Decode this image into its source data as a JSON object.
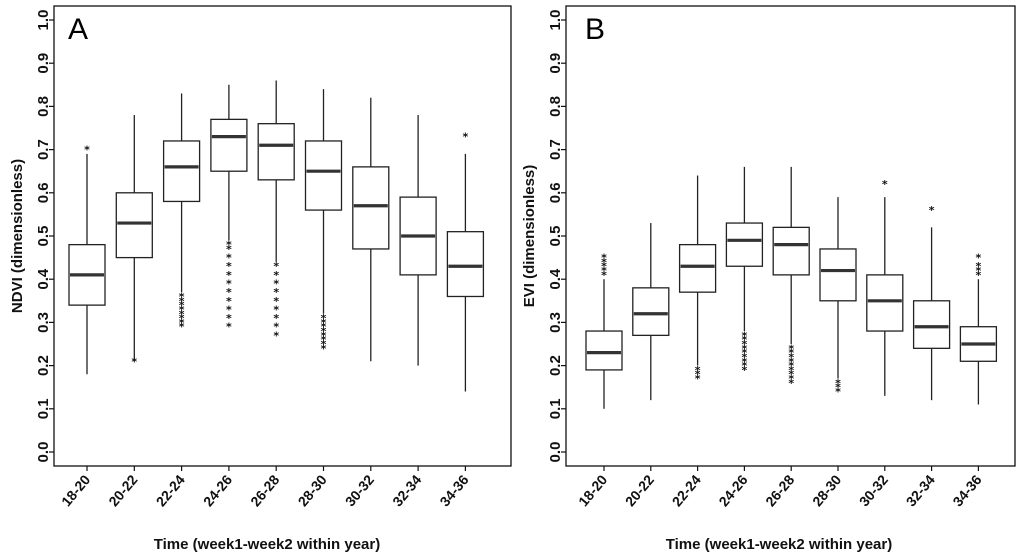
{
  "chart_data": [
    {
      "type": "box",
      "panel_label": "A",
      "xlabel": "Time (week1-week2 within year)",
      "ylabel": "NDVI (dimensionless)",
      "ylim": [
        0.0,
        1.0
      ],
      "yticks": [
        "0.0",
        "0.1",
        "0.2",
        "0.3",
        "0.4",
        "0.5",
        "0.6",
        "0.7",
        "0.8",
        "0.9",
        "1.0"
      ],
      "categories": [
        "18-20",
        "20-22",
        "22-24",
        "24-26",
        "26-28",
        "28-30",
        "30-32",
        "32-34",
        "34-36"
      ],
      "boxes": [
        {
          "whisker_low": 0.18,
          "q1": 0.34,
          "median": 0.41,
          "q3": 0.48,
          "whisker_high": 0.69,
          "outliers": [
            0.7
          ]
        },
        {
          "whisker_low": 0.21,
          "q1": 0.45,
          "median": 0.53,
          "q3": 0.6,
          "whisker_high": 0.78,
          "outliers": [
            0.21
          ]
        },
        {
          "whisker_low": 0.37,
          "q1": 0.58,
          "median": 0.66,
          "q3": 0.72,
          "whisker_high": 0.83,
          "outliers": [
            0.29,
            0.3,
            0.31,
            0.32,
            0.33,
            0.34,
            0.35,
            0.36
          ]
        },
        {
          "whisker_low": 0.49,
          "q1": 0.65,
          "median": 0.73,
          "q3": 0.77,
          "whisker_high": 0.85,
          "outliers": [
            0.29,
            0.31,
            0.33,
            0.35,
            0.37,
            0.39,
            0.41,
            0.43,
            0.45,
            0.47,
            0.48
          ]
        },
        {
          "whisker_low": 0.44,
          "q1": 0.63,
          "median": 0.71,
          "q3": 0.76,
          "whisker_high": 0.86,
          "outliers": [
            0.27,
            0.29,
            0.31,
            0.33,
            0.35,
            0.37,
            0.39,
            0.41,
            0.43
          ]
        },
        {
          "whisker_low": 0.32,
          "q1": 0.56,
          "median": 0.65,
          "q3": 0.72,
          "whisker_high": 0.84,
          "outliers": [
            0.24,
            0.25,
            0.26,
            0.27,
            0.28,
            0.29,
            0.3,
            0.31
          ]
        },
        {
          "whisker_low": 0.21,
          "q1": 0.47,
          "median": 0.57,
          "q3": 0.66,
          "whisker_high": 0.82,
          "outliers": []
        },
        {
          "whisker_low": 0.2,
          "q1": 0.41,
          "median": 0.5,
          "q3": 0.59,
          "whisker_high": 0.78,
          "outliers": []
        },
        {
          "whisker_low": 0.14,
          "q1": 0.36,
          "median": 0.43,
          "q3": 0.51,
          "whisker_high": 0.69,
          "outliers": [
            0.73
          ]
        }
      ]
    },
    {
      "type": "box",
      "panel_label": "B",
      "xlabel": "Time (week1-week2 within year)",
      "ylabel": "EVI (dimensionless)",
      "ylim": [
        0.0,
        1.0
      ],
      "yticks": [
        "0.0",
        "0.1",
        "0.2",
        "0.3",
        "0.4",
        "0.5",
        "0.6",
        "0.7",
        "0.8",
        "0.9",
        "1.0"
      ],
      "categories": [
        "18-20",
        "20-22",
        "22-24",
        "24-26",
        "26-28",
        "28-30",
        "30-32",
        "32-34",
        "34-36"
      ],
      "boxes": [
        {
          "whisker_low": 0.1,
          "q1": 0.19,
          "median": 0.23,
          "q3": 0.28,
          "whisker_high": 0.4,
          "outliers": [
            0.41,
            0.42,
            0.43,
            0.44,
            0.45
          ]
        },
        {
          "whisker_low": 0.12,
          "q1": 0.27,
          "median": 0.32,
          "q3": 0.38,
          "whisker_high": 0.53,
          "outliers": []
        },
        {
          "whisker_low": 0.2,
          "q1": 0.37,
          "median": 0.43,
          "q3": 0.48,
          "whisker_high": 0.64,
          "outliers": [
            0.17,
            0.18,
            0.19
          ]
        },
        {
          "whisker_low": 0.28,
          "q1": 0.43,
          "median": 0.49,
          "q3": 0.53,
          "whisker_high": 0.66,
          "outliers": [
            0.19,
            0.2,
            0.21,
            0.22,
            0.23,
            0.24,
            0.25,
            0.26,
            0.27
          ]
        },
        {
          "whisker_low": 0.25,
          "q1": 0.41,
          "median": 0.48,
          "q3": 0.52,
          "whisker_high": 0.66,
          "outliers": [
            0.16,
            0.17,
            0.18,
            0.19,
            0.2,
            0.21,
            0.22,
            0.23,
            0.24
          ]
        },
        {
          "whisker_low": 0.17,
          "q1": 0.35,
          "median": 0.42,
          "q3": 0.47,
          "whisker_high": 0.59,
          "outliers": [
            0.14,
            0.15,
            0.16
          ]
        },
        {
          "whisker_low": 0.13,
          "q1": 0.28,
          "median": 0.35,
          "q3": 0.41,
          "whisker_high": 0.59,
          "outliers": [
            0.62
          ]
        },
        {
          "whisker_low": 0.12,
          "q1": 0.24,
          "median": 0.29,
          "q3": 0.35,
          "whisker_high": 0.52,
          "outliers": [
            0.56
          ]
        },
        {
          "whisker_low": 0.11,
          "q1": 0.21,
          "median": 0.25,
          "q3": 0.29,
          "whisker_high": 0.4,
          "outliers": [
            0.41,
            0.42,
            0.43,
            0.45
          ]
        }
      ]
    }
  ]
}
